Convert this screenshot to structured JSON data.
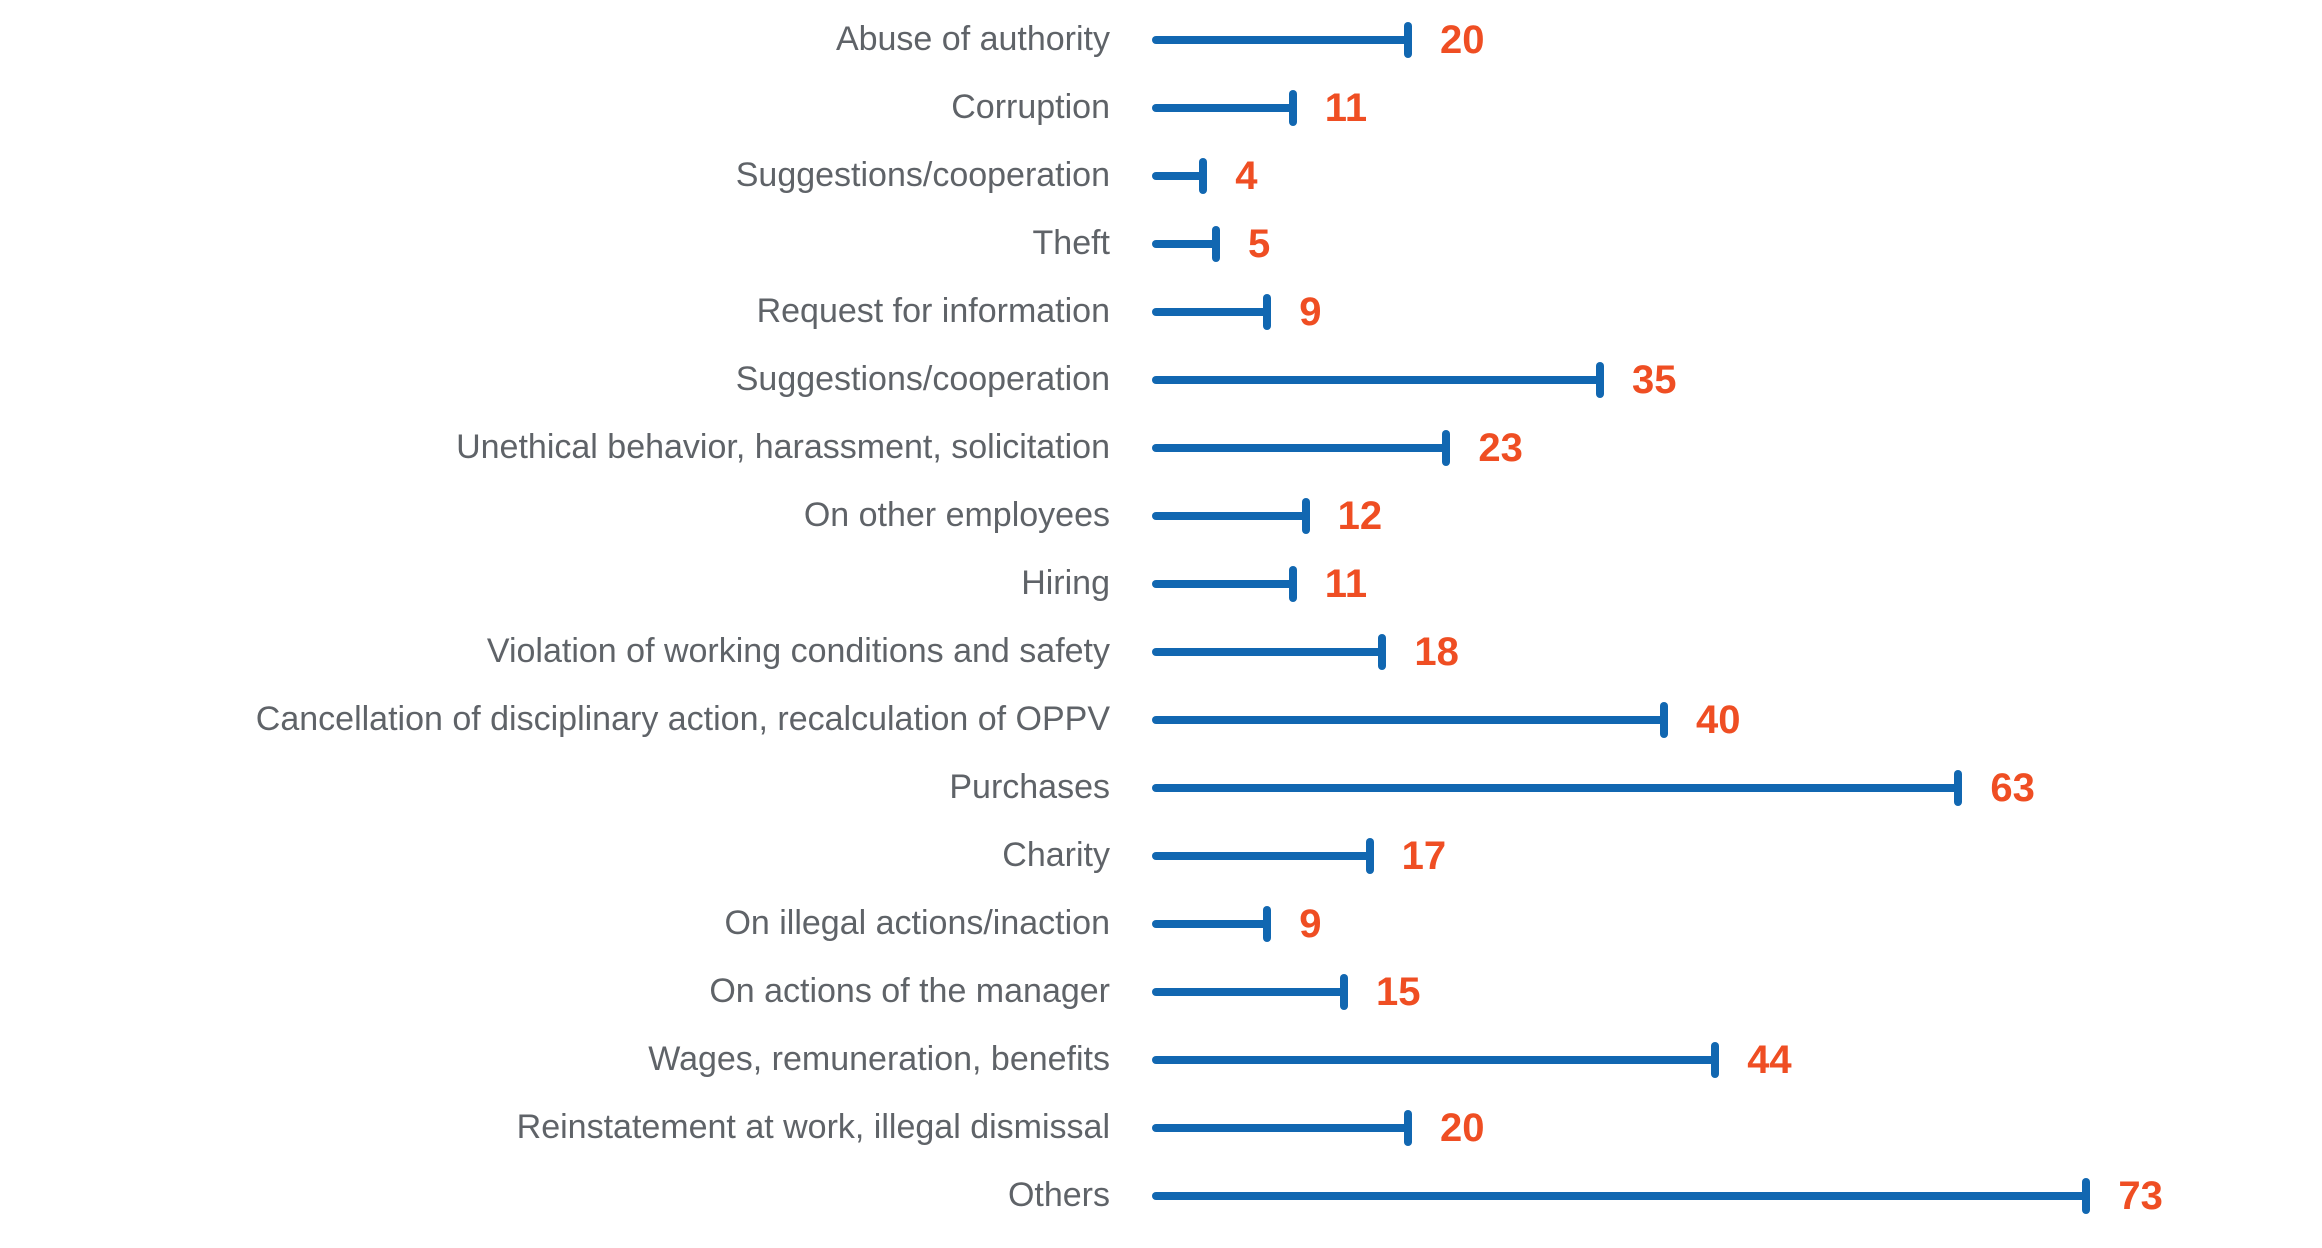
{
  "chart_data": {
    "type": "bar",
    "subtype": "lollipop",
    "orientation": "horizontal",
    "title": "",
    "xlabel": "",
    "ylabel": "",
    "grid": false,
    "legend_position": "none",
    "xlim": [
      0,
      78
    ],
    "categories": [
      "Abuse of authority",
      "Corruption",
      "Suggestions/cooperation",
      "Theft",
      "Request for information",
      "Suggestions/cooperation",
      "Unethical behavior, harassment, solicitation",
      "On other employees",
      "Hiring",
      "Violation of working conditions and safety",
      "Cancellation of disciplinary action, recalculation of OPPV",
      "Purchases",
      "Charity",
      "On illegal actions/inaction",
      "On actions of the manager",
      "Wages, remuneration, benefits",
      "Reinstatement at work, illegal dismissal",
      "Others"
    ],
    "values": [
      20,
      11,
      4,
      5,
      9,
      35,
      23,
      12,
      11,
      18,
      40,
      63,
      17,
      9,
      15,
      44,
      20,
      73
    ],
    "colors": {
      "bar": "#1167b1",
      "value_label": "#ef4e23",
      "category_label": "#5f6368",
      "background": "#ffffff"
    }
  }
}
